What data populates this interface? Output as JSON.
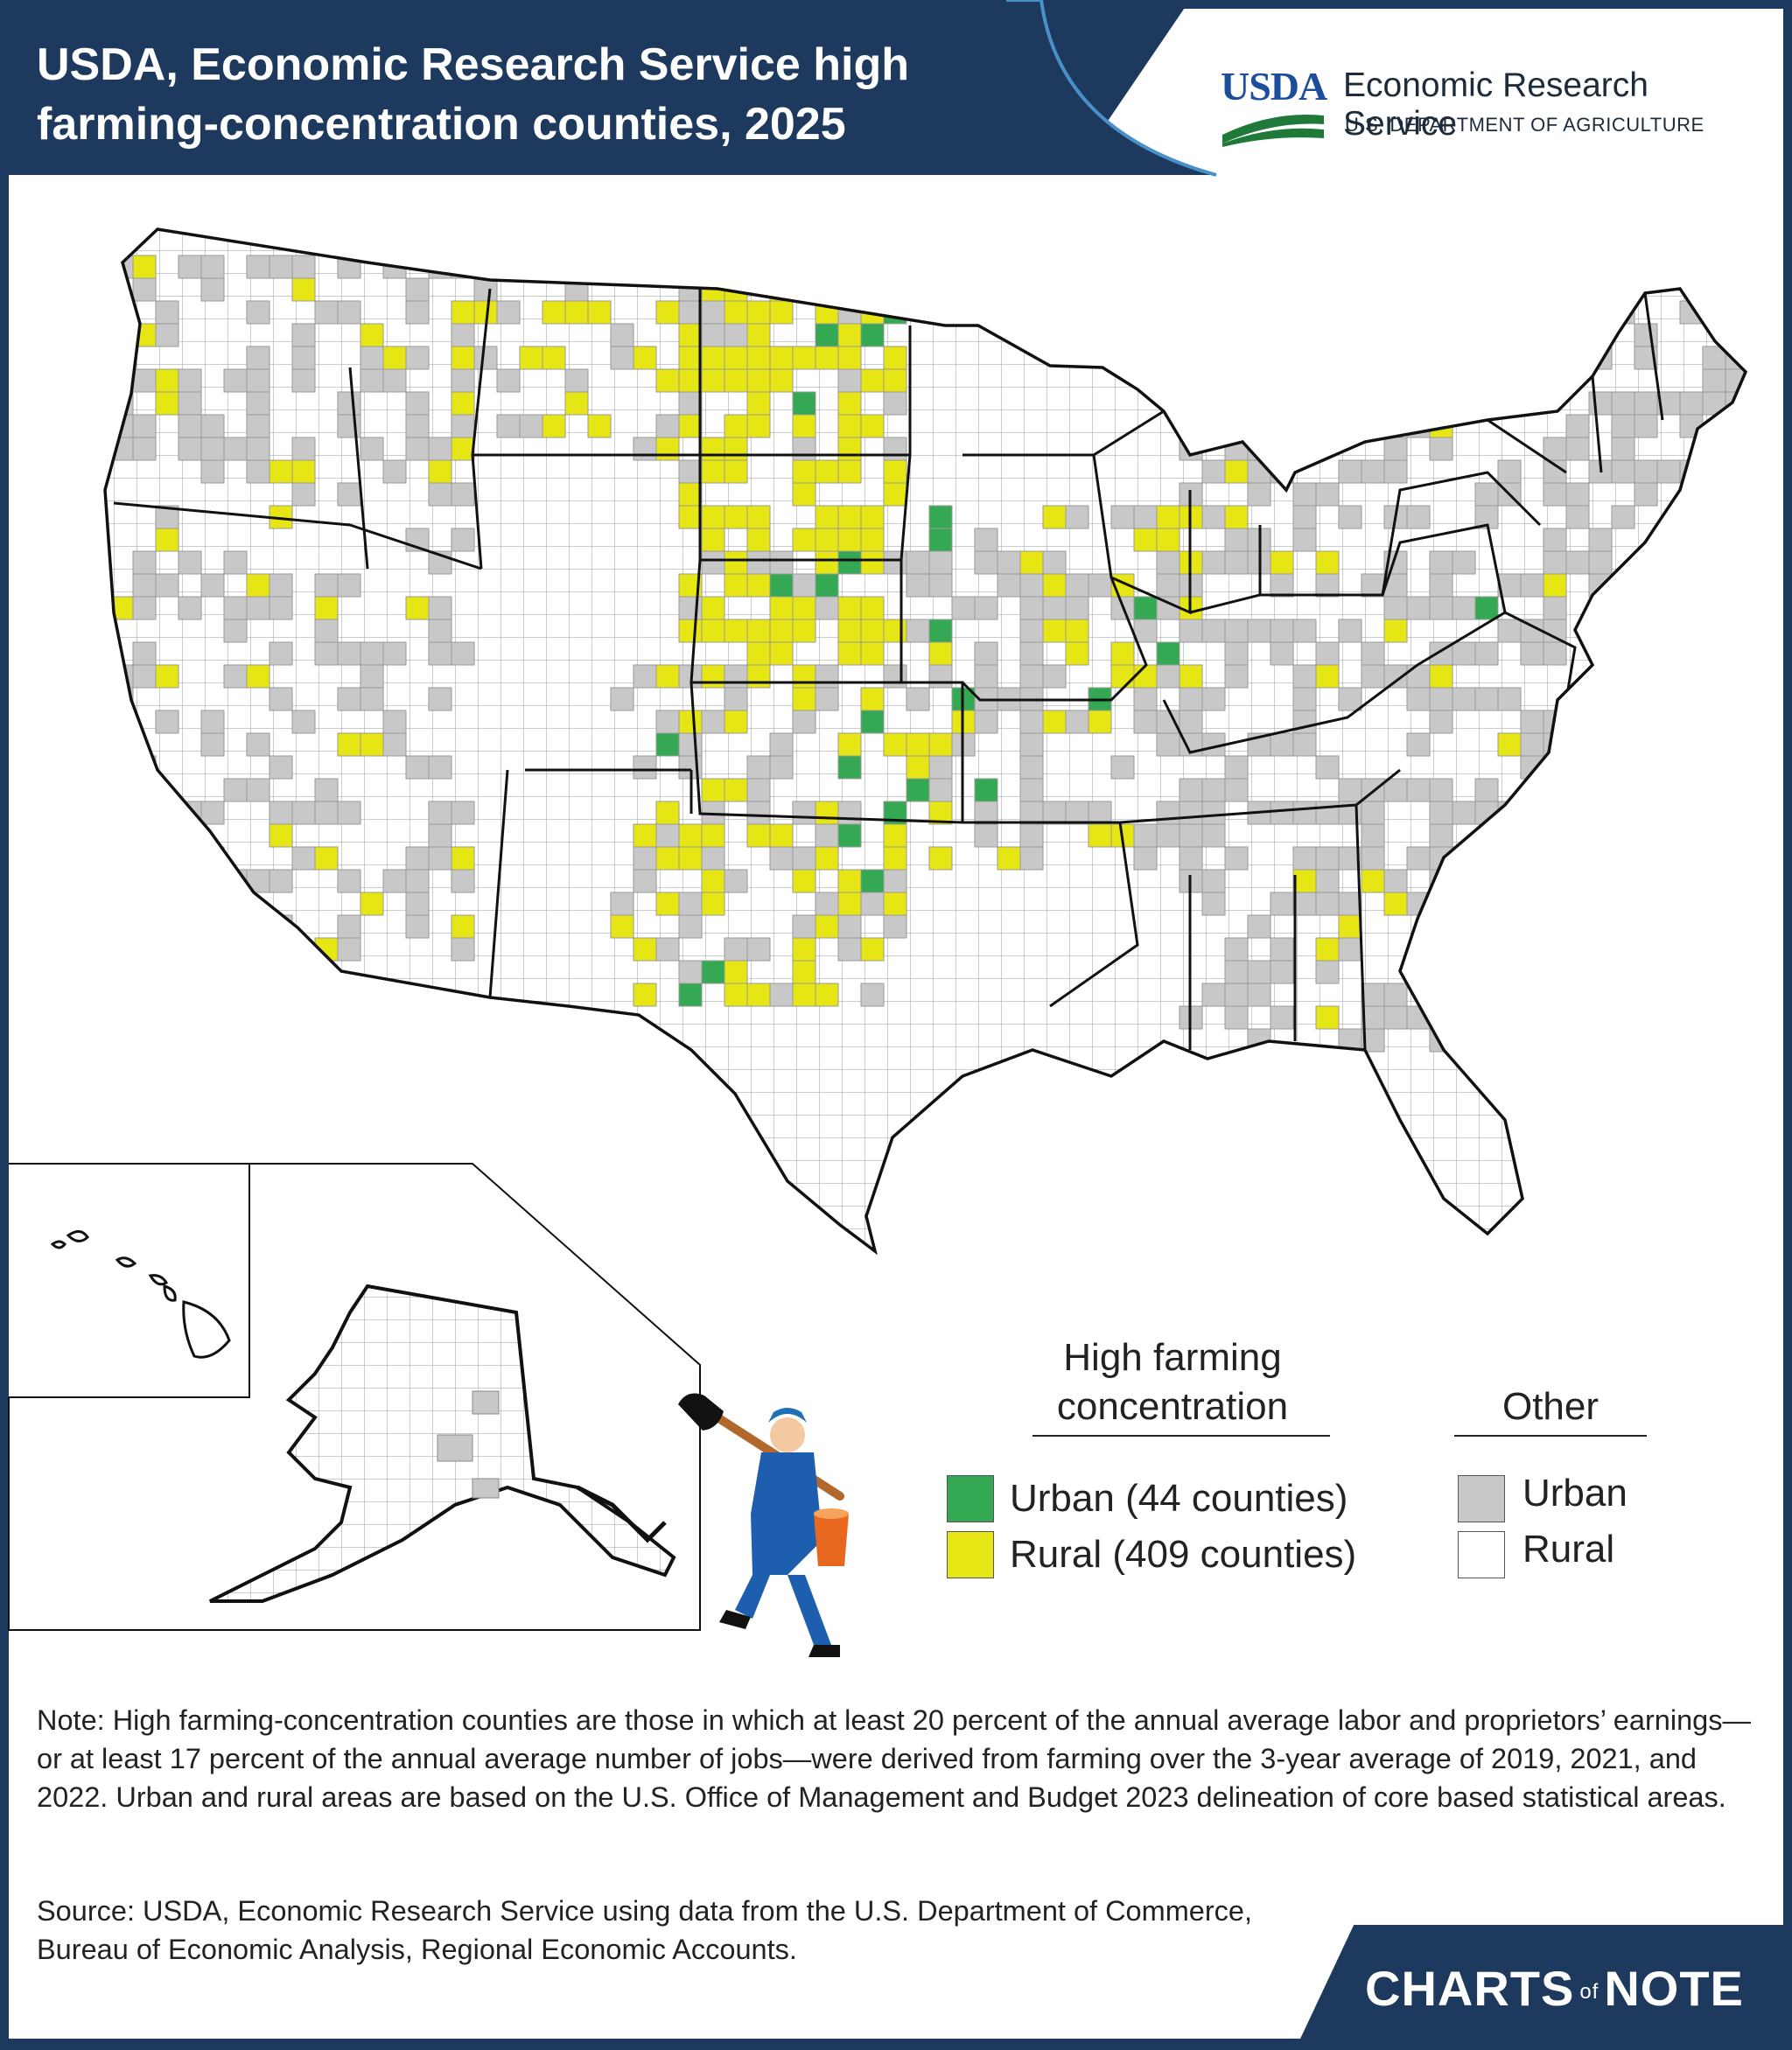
{
  "title": "USDA, Economic Research Service high farming-concentration counties, 2025",
  "logo": {
    "agency_mark": "USDA",
    "agency_name": "Economic Research Service",
    "department": "U.S. DEPARTMENT OF AGRICULTURE"
  },
  "legend": {
    "high_heading": "High farming concentration",
    "other_heading": "Other",
    "items": [
      {
        "label": "Urban (44 counties)",
        "color": "#34a853"
      },
      {
        "label": "Rural (409 counties)",
        "color": "#e6e614"
      },
      {
        "label": "Urban",
        "color": "#c8c8c8"
      },
      {
        "label": "Rural",
        "color": "#ffffff"
      }
    ]
  },
  "note": "Note: High farming-concentration counties are those in which at least 20 percent of the annual average labor and proprietors’ earnings—or at least 17 percent of the annual average number of jobs—were derived from farming over the 3-year average of 2019, 2021, and 2022. Urban and rural areas are based on the U.S. Office of Management and Budget 2023 delineation of core based statistical areas.",
  "source": "Source: USDA, Economic Research Service using data from the U.S. Department of Commerce, Bureau of Economic Analysis, Regional Economic Accounts.",
  "brand": {
    "left": "CHARTS",
    "mid": "of",
    "right": "NOTE"
  },
  "colors": {
    "navy": "#1d3a5e",
    "high_urban": "#34a853",
    "high_rural": "#e6e614",
    "other_urban": "#c8c8c8",
    "other_rural": "#ffffff"
  }
}
